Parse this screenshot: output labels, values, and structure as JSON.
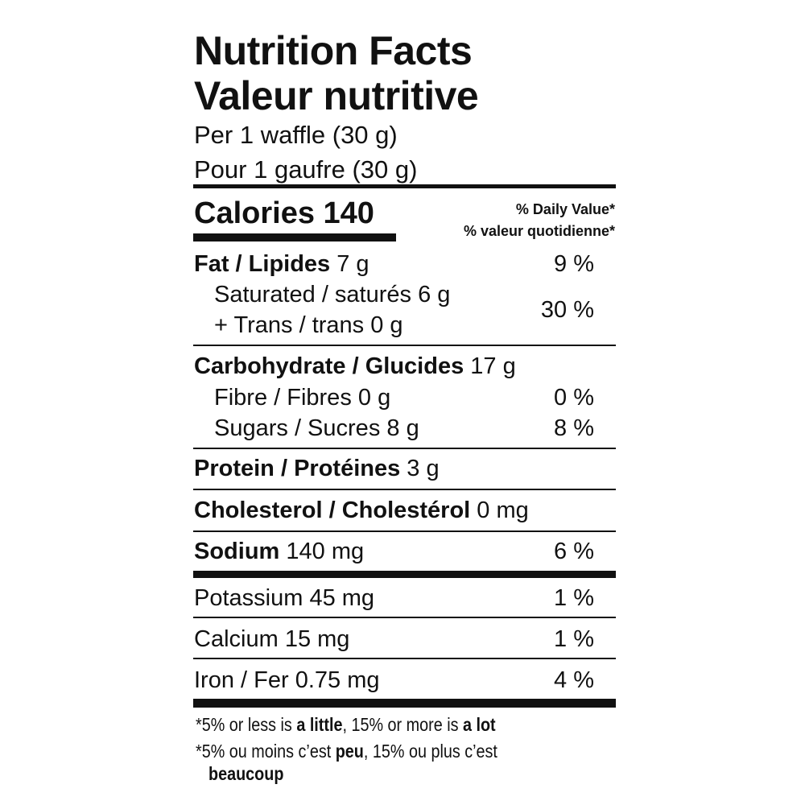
{
  "title_en": "Nutrition Facts",
  "title_fr": "Valeur nutritive",
  "serving_en": "Per 1 waffle (30 g)",
  "serving_fr": "Pour 1 gaufre (30 g)",
  "calories": {
    "label": "Calories",
    "value": "140"
  },
  "daily_value_en": "% Daily Value*",
  "daily_value_fr": "% valeur quotidienne*",
  "nutrients": {
    "fat": {
      "label": "Fat / Lipides",
      "amount": "7 g",
      "dv": "9 %"
    },
    "saturated": {
      "label": "Saturated / saturés",
      "amount": "6 g"
    },
    "trans": {
      "label": "+ Trans / trans",
      "amount": "0 g"
    },
    "sat_trans_dv": "30 %",
    "carb": {
      "label": "Carbohydrate / Glucides",
      "amount": "17 g"
    },
    "fibre": {
      "label": "Fibre / Fibres",
      "amount": "0 g",
      "dv": "0 %"
    },
    "sugars": {
      "label": "Sugars / Sucres",
      "amount": "8 g",
      "dv": "8 %"
    },
    "protein": {
      "label": "Protein / Protéines",
      "amount": "3 g"
    },
    "cholesterol": {
      "label": "Cholesterol / Cholestérol",
      "amount": "0 mg"
    },
    "sodium": {
      "label": "Sodium",
      "amount": "140 mg",
      "dv": "6 %"
    },
    "potassium": {
      "label": "Potassium",
      "amount": "45 mg",
      "dv": "1 %"
    },
    "calcium": {
      "label": "Calcium",
      "amount": "15 mg",
      "dv": "1 %"
    },
    "iron": {
      "label": "Iron / Fer",
      "amount": "0.75 mg",
      "dv": "4 %"
    }
  },
  "footnote_en": {
    "a": "*5% or less is ",
    "b": "a little",
    "c": ", 15% or more is ",
    "d": "a lot"
  },
  "footnote_fr": {
    "a": "*5% ou moins c’est ",
    "b": "peu",
    "c": ", 15% ou plus c’est",
    "d": "beaucoup"
  }
}
